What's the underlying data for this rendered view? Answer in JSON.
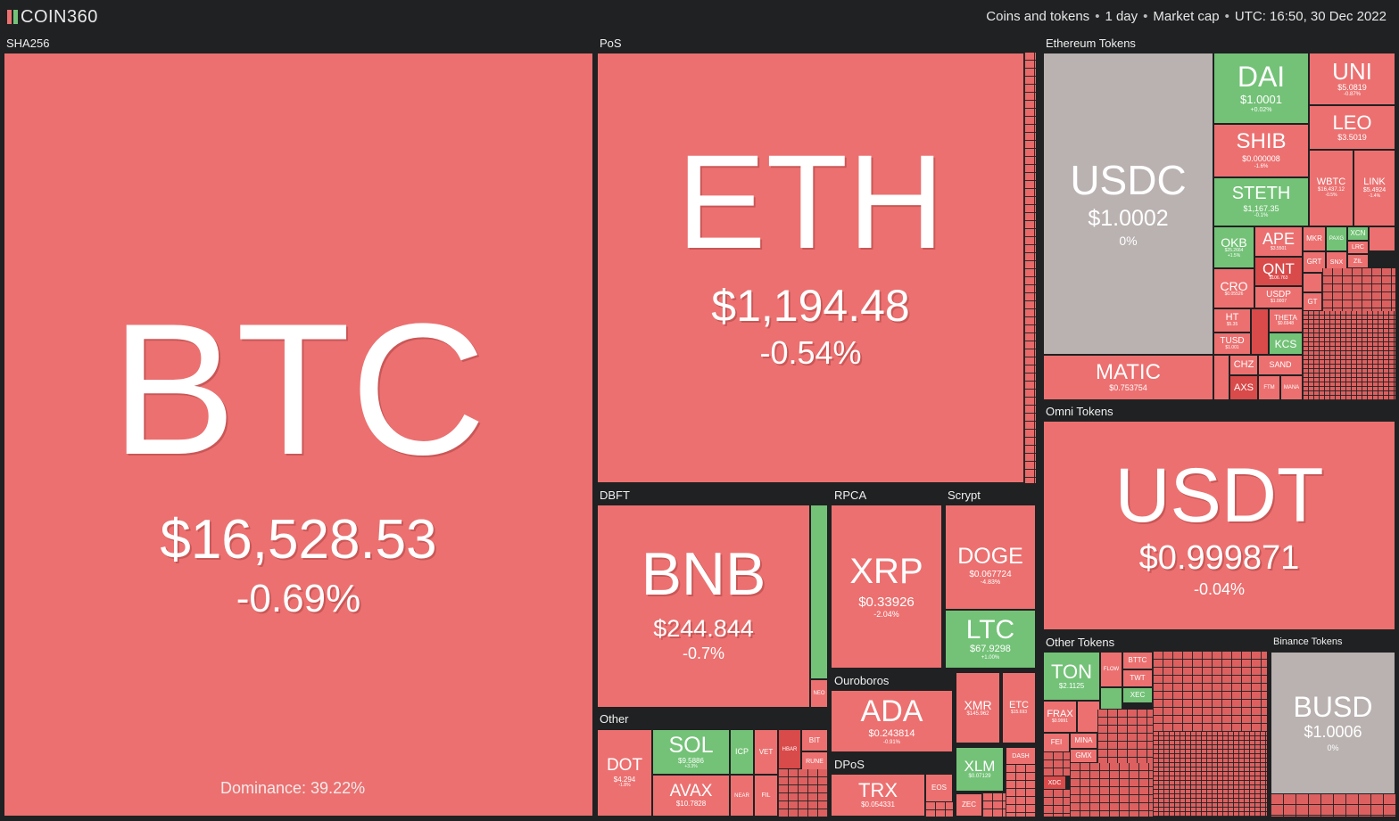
{
  "header": {
    "logo_text": "COIN360",
    "context": [
      "Coins and tokens",
      "1 day",
      "Market cap",
      "UTC: 16:50, 30 Dec 2022"
    ]
  },
  "colors": {
    "down": "#ec7070",
    "down_strong": "#d94a4a",
    "up": "#73c277",
    "flat": "#b9b2b1",
    "background": "#1f2122"
  },
  "groups": {
    "sha256": "SHA256",
    "pos": "PoS",
    "eth_tokens": "Ethereum Tokens",
    "omni": "Omni Tokens",
    "dbft": "DBFT",
    "rpca": "RPCA",
    "scrypt": "Scrypt",
    "other": "Other",
    "ouroboros": "Ouroboros",
    "dpos": "DPoS",
    "other_tokens": "Other Tokens",
    "binance_tokens": "Binance Tokens"
  },
  "dominance": "Dominance: 39.22%",
  "coins": {
    "btc": {
      "symbol": "BTC",
      "price": "$16,528.53",
      "change": "-0.69%"
    },
    "eth": {
      "symbol": "ETH",
      "price": "$1,194.48",
      "change": "-0.54%"
    },
    "usdt": {
      "symbol": "USDT",
      "price": "$0.999871",
      "change": "-0.04%"
    },
    "usdc": {
      "symbol": "USDC",
      "price": "$1.0002",
      "change": "0%"
    },
    "bnb": {
      "symbol": "BNB",
      "price": "$244.844",
      "change": "-0.7%"
    },
    "xrp": {
      "symbol": "XRP",
      "price": "$0.33926",
      "change": "-2.04%"
    },
    "doge": {
      "symbol": "DOGE",
      "price": "$0.067724",
      "change": "-4.83%"
    },
    "ltc": {
      "symbol": "LTC",
      "price": "$67.9298",
      "change": "+1.00%"
    },
    "ada": {
      "symbol": "ADA",
      "price": "$0.243814",
      "change": "-0.91%"
    },
    "busd": {
      "symbol": "BUSD",
      "price": "$1.0006",
      "change": "0%"
    },
    "matic": {
      "symbol": "MATIC",
      "price": "$0.753754",
      "change": ""
    },
    "dai": {
      "symbol": "DAI",
      "price": "$1.0001",
      "change": "+0.02%"
    },
    "uni": {
      "symbol": "UNI",
      "price": "$5.0819",
      "change": "-0.87%"
    },
    "leo": {
      "symbol": "LEO",
      "price": "$3.5019",
      "change": ""
    },
    "shib": {
      "symbol": "SHIB",
      "price": "$0.000008",
      "change": "-1.6%"
    },
    "steth": {
      "symbol": "STETH",
      "price": "$1,167.35",
      "change": "-0.1%"
    },
    "wbtc": {
      "symbol": "WBTC",
      "price": "$16,437.12",
      "change": "-0.5%"
    },
    "link": {
      "symbol": "LINK",
      "price": "$5.4924",
      "change": "-1.4%"
    },
    "okb": {
      "symbol": "OKB",
      "price": "$25.2664",
      "change": "+1.5%"
    },
    "ape": {
      "symbol": "APE",
      "price": "$3.5501",
      "change": "-4.3%"
    },
    "qnt": {
      "symbol": "QNT",
      "price": "$106.763",
      "change": "-1.5%"
    },
    "cro": {
      "symbol": "CRO",
      "price": "$0.05526",
      "change": "-0.8%"
    },
    "usdp": {
      "symbol": "USDP",
      "price": "$1.0007",
      "change": ""
    },
    "ht": {
      "symbol": "HT",
      "price": "$5.35",
      "change": ""
    },
    "tusd": {
      "symbol": "TUSD",
      "price": "$1.001",
      "change": ""
    },
    "theta": {
      "symbol": "THETA",
      "price": "$0.6948",
      "change": ""
    },
    "kcs": {
      "symbol": "KCS",
      "price": "",
      "change": ""
    },
    "chz": {
      "symbol": "CHZ",
      "price": "",
      "change": ""
    },
    "sand": {
      "symbol": "SAND",
      "price": "",
      "change": ""
    },
    "axs": {
      "symbol": "AXS",
      "price": "",
      "change": ""
    },
    "dot": {
      "symbol": "DOT",
      "price": "$4.294",
      "change": "-1.8%"
    },
    "sol": {
      "symbol": "SOL",
      "price": "$9.5886",
      "change": "+3.3%"
    },
    "avax": {
      "symbol": "AVAX",
      "price": "$10.7828",
      "change": ""
    },
    "icp": {
      "symbol": "ICP",
      "price": "",
      "change": ""
    },
    "vet": {
      "symbol": "VET",
      "price": "",
      "change": ""
    },
    "hbar": {
      "symbol": "HBAR",
      "price": "",
      "change": ""
    },
    "bit": {
      "symbol": "BIT",
      "price": "",
      "change": ""
    },
    "rune": {
      "symbol": "RUNE",
      "price": "",
      "change": ""
    },
    "near": {
      "symbol": "NEAR",
      "price": "",
      "change": ""
    },
    "fil": {
      "symbol": "FIL",
      "price": "",
      "change": ""
    },
    "trx": {
      "symbol": "TRX",
      "price": "$0.054331",
      "change": ""
    },
    "eos": {
      "symbol": "EOS",
      "price": "",
      "change": ""
    },
    "xmr": {
      "symbol": "XMR",
      "price": "$145.962",
      "change": ""
    },
    "etc": {
      "symbol": "ETC",
      "price": "$15.693",
      "change": ""
    },
    "xlm": {
      "symbol": "XLM",
      "price": "$0.07129",
      "change": ""
    },
    "dash": {
      "symbol": "DASH",
      "price": "",
      "change": ""
    },
    "zec": {
      "symbol": "ZEC",
      "price": "",
      "change": ""
    },
    "ton": {
      "symbol": "TON",
      "price": "$2.1125",
      "change": ""
    },
    "frax": {
      "symbol": "FRAX",
      "price": "$0.9991",
      "change": ""
    },
    "fei": {
      "symbol": "FEI",
      "price": "",
      "change": ""
    },
    "mina": {
      "symbol": "MINA",
      "price": "",
      "change": ""
    },
    "gmx": {
      "symbol": "GMX",
      "price": "",
      "change": ""
    },
    "btc_tok": {
      "symbol": "BTTC",
      "price": "",
      "change": ""
    },
    "twt": {
      "symbol": "TWT",
      "price": "",
      "change": ""
    },
    "xec": {
      "symbol": "XEC",
      "price": "",
      "change": ""
    },
    "flow": {
      "symbol": "FLOW",
      "price": "",
      "change": ""
    },
    "xdc": {
      "symbol": "XDC",
      "price": "",
      "change": ""
    },
    "neo": {
      "symbol": "NEO",
      "price": "",
      "change": ""
    },
    "mkr": {
      "symbol": "MKR",
      "price": "",
      "change": ""
    },
    "grt": {
      "symbol": "GRT",
      "price": "",
      "change": ""
    },
    "snx": {
      "symbol": "SNX",
      "price": "",
      "change": ""
    },
    "xcn": {
      "symbol": "XCN",
      "price": "",
      "change": ""
    },
    "lrc": {
      "symbol": "LRC",
      "price": "",
      "change": ""
    },
    "zil": {
      "symbol": "ZIL",
      "price": "",
      "change": ""
    },
    "paxg": {
      "symbol": "PAXG",
      "price": "",
      "change": ""
    },
    "gt": {
      "symbol": "GT",
      "price": "",
      "change": ""
    },
    "ftm": {
      "symbol": "FTM",
      "price": "",
      "change": ""
    },
    "mana": {
      "symbol": "MANA",
      "price": "",
      "change": ""
    }
  }
}
